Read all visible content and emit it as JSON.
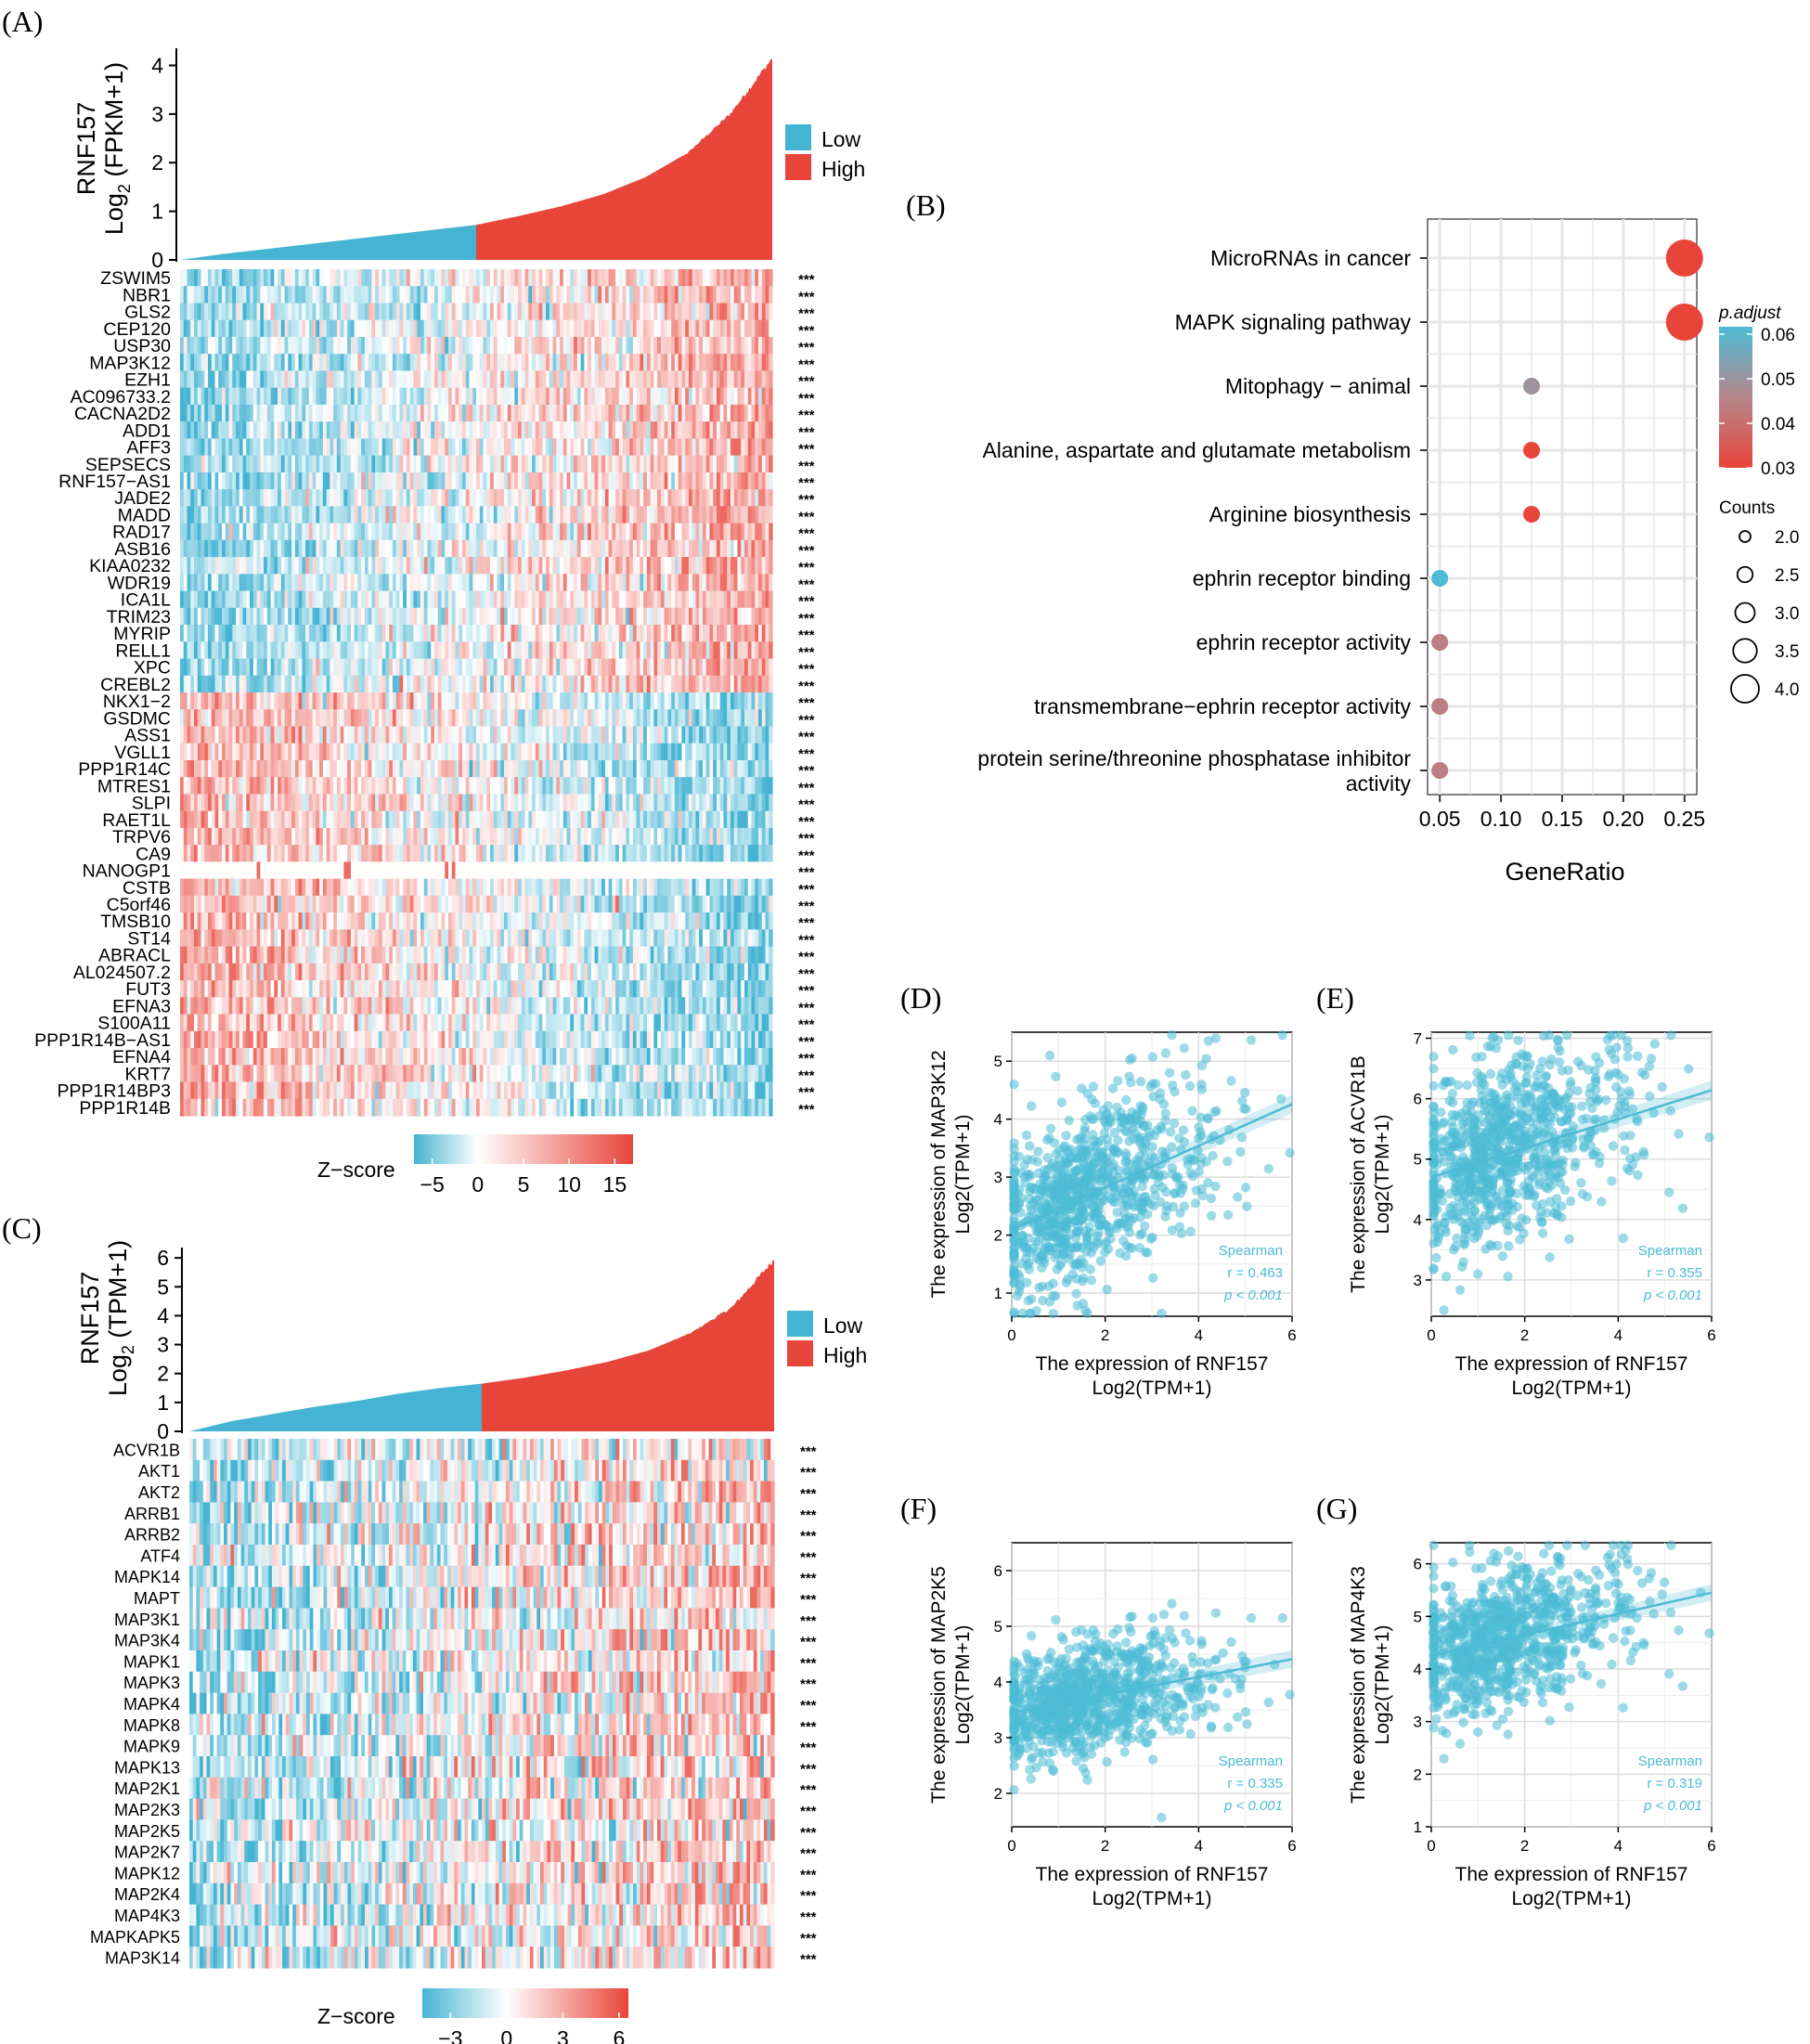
{
  "colors": {
    "low": "#45b4d2",
    "high": "#e8453a",
    "heat_neg": "#45b4d2",
    "heat_mid": "#ffffff",
    "heat_pos": "#e8453a",
    "dot_blue": "#4dbbd5",
    "dot_mid": "#b5868a",
    "scatter": "#4dbbd5",
    "grid": "#e6e6e6"
  },
  "panels": {
    "A": {
      "tag": "(A)",
      "ylabel_gene": "RNF157",
      "ylabel_unit_pre": "Log",
      "ylabel_unit_sub": "2",
      "ylabel_unit_post": " (FPKM+1)",
      "legend_low": "Low",
      "legend_high": "High",
      "zscore_label": "Z−score",
      "zscore_ticks": [
        "−5",
        "0",
        "5",
        "10",
        "15"
      ],
      "sig": "***"
    },
    "B": {
      "tag": "(B)"
    },
    "C": {
      "tag": "(C)",
      "ylabel_gene": "RNF157",
      "ylabel_unit_pre": "Log",
      "ylabel_unit_sub": "2",
      "ylabel_unit_post": " (TPM+1)",
      "legend_low": "Low",
      "legend_high": "High",
      "zscore_label": "Z−score",
      "zscore_ticks": [
        "−3",
        "0",
        "3",
        "6"
      ],
      "sig": "***"
    },
    "D": {
      "tag": "(D)"
    },
    "E": {
      "tag": "(E)"
    },
    "F": {
      "tag": "(F)"
    },
    "G": {
      "tag": "(G)"
    }
  },
  "chart_data": [
    {
      "id": "A_bar",
      "type": "bar",
      "title": "",
      "ylabel": "RNF157 Log2 (FPKM+1)",
      "ylim": [
        0,
        4.2
      ],
      "yticks": [
        "0",
        "1",
        "2",
        "3",
        "4"
      ],
      "groups": [
        "Low",
        "High"
      ],
      "sorted_quantiles": [
        0.0,
        0.12,
        0.22,
        0.32,
        0.42,
        0.52,
        0.62,
        0.72,
        0.9,
        1.1,
        1.35,
        1.7,
        2.2,
        3.0,
        4.15
      ]
    },
    {
      "id": "A_heatmap",
      "type": "heatmap",
      "genes": [
        "ZSWIM5",
        "NBR1",
        "GLS2",
        "CEP120",
        "USP30",
        "MAP3K12",
        "EZH1",
        "AC096733.2",
        "CACNA2D2",
        "ADD1",
        "AFF3",
        "SEPSECS",
        "RNF157−AS1",
        "JADE2",
        "MADD",
        "RAD17",
        "ASB16",
        "KIAA0232",
        "WDR19",
        "ICA1L",
        "TRIM23",
        "MYRIP",
        "RELL1",
        "XPC",
        "CREBL2",
        "NKX1−2",
        "GSDMC",
        "ASS1",
        "VGLL1",
        "PPP1R14C",
        "MTRES1",
        "SLPI",
        "RAET1L",
        "TRPV6",
        "CA9",
        "NANOGP1",
        "CSTB",
        "C5orf46",
        "TMSB10",
        "ST14",
        "ABRACL",
        "AL024507.2",
        "FUT3",
        "EFNA3",
        "S100A11",
        "PPP1R14B−AS1",
        "EFNA4",
        "KRT7",
        "PPP1R14BP3",
        "PPP1R14B"
      ],
      "correlation_sign": [
        1,
        1,
        1,
        1,
        1,
        1,
        1,
        1,
        1,
        1,
        1,
        1,
        1,
        1,
        1,
        1,
        1,
        1,
        1,
        1,
        1,
        1,
        1,
        1,
        1,
        -1,
        -1,
        -1,
        -1,
        -1,
        -1,
        -1,
        -1,
        -1,
        -1,
        -1,
        -1,
        -1,
        -1,
        -1,
        -1,
        -1,
        -1,
        -1,
        -1,
        -1,
        -1,
        -1,
        -1,
        -1
      ],
      "zscore_range": [
        -7,
        17
      ]
    },
    {
      "id": "B_dotplot",
      "type": "scatter",
      "xlabel": "GeneRatio",
      "xlim": [
        0.04,
        0.26
      ],
      "xticks": [
        "0.05",
        "0.10",
        "0.15",
        "0.20",
        "0.25"
      ],
      "terms": [
        {
          "label": "MicroRNAs in cancer",
          "label2": "",
          "gene_ratio": 0.25,
          "count": 4,
          "p_adjust": 0.021
        },
        {
          "label": "MAPK signaling pathway",
          "label2": "",
          "gene_ratio": 0.25,
          "count": 4,
          "p_adjust": 0.021
        },
        {
          "label": "Mitophagy − animal",
          "label2": "",
          "gene_ratio": 0.125,
          "count": 2,
          "p_adjust": 0.045
        },
        {
          "label": "Alanine, aspartate and glutamate metabolism",
          "label2": "",
          "gene_ratio": 0.125,
          "count": 2,
          "p_adjust": 0.021
        },
        {
          "label": "Arginine biosynthesis",
          "label2": "",
          "gene_ratio": 0.125,
          "count": 2,
          "p_adjust": 0.021
        },
        {
          "label": "ephrin receptor binding",
          "label2": "",
          "gene_ratio": 0.05,
          "count": 2,
          "p_adjust": 0.06
        },
        {
          "label": "ephrin receptor activity",
          "label2": "",
          "gene_ratio": 0.05,
          "count": 2,
          "p_adjust": 0.038
        },
        {
          "label": "transmembrane−ephrin receptor activity",
          "label2": "",
          "gene_ratio": 0.05,
          "count": 2,
          "p_adjust": 0.038
        },
        {
          "label": "protein serine/threonine phosphatase inhibitor",
          "label2": "activity",
          "gene_ratio": 0.05,
          "count": 2,
          "p_adjust": 0.038
        }
      ],
      "legend_color_title": "p.adjust",
      "legend_color_ticks": [
        "0.06",
        "0.05",
        "0.04",
        "0.03"
      ],
      "legend_size_title": "Counts",
      "legend_size_ticks": [
        "2.0",
        "2.5",
        "3.0",
        "3.5",
        "4.0"
      ]
    },
    {
      "id": "C_bar",
      "type": "bar",
      "ylabel": "RNF157 Log2 (TPM+1)",
      "ylim": [
        0,
        6.1
      ],
      "yticks": [
        "0",
        "1",
        "2",
        "3",
        "4",
        "5",
        "6"
      ],
      "groups": [
        "Low",
        "High"
      ],
      "sorted_quantiles": [
        0.0,
        0.35,
        0.6,
        0.85,
        1.05,
        1.3,
        1.5,
        1.65,
        1.85,
        2.1,
        2.4,
        2.8,
        3.4,
        4.3,
        5.95
      ]
    },
    {
      "id": "C_heatmap",
      "type": "heatmap",
      "genes": [
        "ACVR1B",
        "AKT1",
        "AKT2",
        "ARRB1",
        "ARRB2",
        "ATF4",
        "MAPK14",
        "MAPT",
        "MAP3K1",
        "MAP3K4",
        "MAPK1",
        "MAPK3",
        "MAPK4",
        "MAPK8",
        "MAPK9",
        "MAPK13",
        "MAP2K1",
        "MAP2K3",
        "MAP2K5",
        "MAP2K7",
        "MAPK12",
        "MAP2K4",
        "MAP4K3",
        "MAPKAPK5",
        "MAP3K14"
      ],
      "zscore_range": [
        -4.5,
        6.5
      ]
    },
    {
      "id": "D_scatter",
      "type": "scatter",
      "xlabel": "The expression of  RNF157",
      "xlabel2": "Log2(TPM+1)",
      "ylabel": "The expression of  MAP3K12",
      "ylabel2": "Log2(TPM+1)",
      "xlim": [
        0,
        6
      ],
      "ylim": [
        0.6,
        5.5
      ],
      "xticks": [
        0,
        2,
        4,
        6
      ],
      "yticks": [
        1,
        2,
        3,
        4,
        5
      ],
      "fit": {
        "intercept": 2.1,
        "slope": 0.36
      },
      "cloud": {
        "ymean": 2.1,
        "yslope": 0.38,
        "spread": 0.75
      },
      "stat_title": "Spearman",
      "r_text": "r = 0.463",
      "p_text": "p < 0.001"
    },
    {
      "id": "E_scatter",
      "type": "scatter",
      "xlabel": "The expression of  RNF157",
      "xlabel2": "Log2(TPM+1)",
      "ylabel": "The expression of  ACVR1B",
      "ylabel2": "Log2(TPM+1)",
      "xlim": [
        0,
        6
      ],
      "ylim": [
        2.4,
        7.1
      ],
      "xticks": [
        0,
        2,
        4,
        6
      ],
      "yticks": [
        3,
        4,
        5,
        6,
        7
      ],
      "fit": {
        "intercept": 4.7,
        "slope": 0.24
      },
      "cloud": {
        "ymean": 4.75,
        "yslope": 0.25,
        "spread": 0.75
      },
      "stat_title": "Spearman",
      "r_text": "r = 0.355",
      "p_text": "p < 0.001"
    },
    {
      "id": "F_scatter",
      "type": "scatter",
      "xlabel": "The expression of  RNF157",
      "xlabel2": "Log2(TPM+1)",
      "ylabel": "The expression of  MAP2K5",
      "ylabel2": "Log2(TPM+1)",
      "xlim": [
        0,
        6
      ],
      "ylim": [
        1.4,
        6.5
      ],
      "xticks": [
        0,
        2,
        4,
        6
      ],
      "yticks": [
        2,
        3,
        4,
        5,
        6
      ],
      "fit": {
        "intercept": 3.45,
        "slope": 0.16
      },
      "cloud": {
        "ymean": 3.45,
        "yslope": 0.16,
        "spread": 0.5
      },
      "stat_title": "Spearman",
      "r_text": "r = 0.335",
      "p_text": "p < 0.001"
    },
    {
      "id": "G_scatter",
      "type": "scatter",
      "xlabel": "The expression of  RNF157",
      "xlabel2": "Log2(TPM+1)",
      "ylabel": "The expression of  MAP4K3",
      "ylabel2": "Log2(TPM+1)",
      "xlim": [
        0,
        6
      ],
      "ylim": [
        1,
        6.4
      ],
      "xticks": [
        0,
        2,
        4,
        6
      ],
      "yticks": [
        1,
        2,
        3,
        4,
        5,
        6
      ],
      "fit": {
        "intercept": 4.25,
        "slope": 0.2
      },
      "cloud": {
        "ymean": 4.25,
        "yslope": 0.2,
        "spread": 0.65
      },
      "stat_title": "Spearman",
      "r_text": "r = 0.319",
      "p_text": "p < 0.001"
    }
  ]
}
